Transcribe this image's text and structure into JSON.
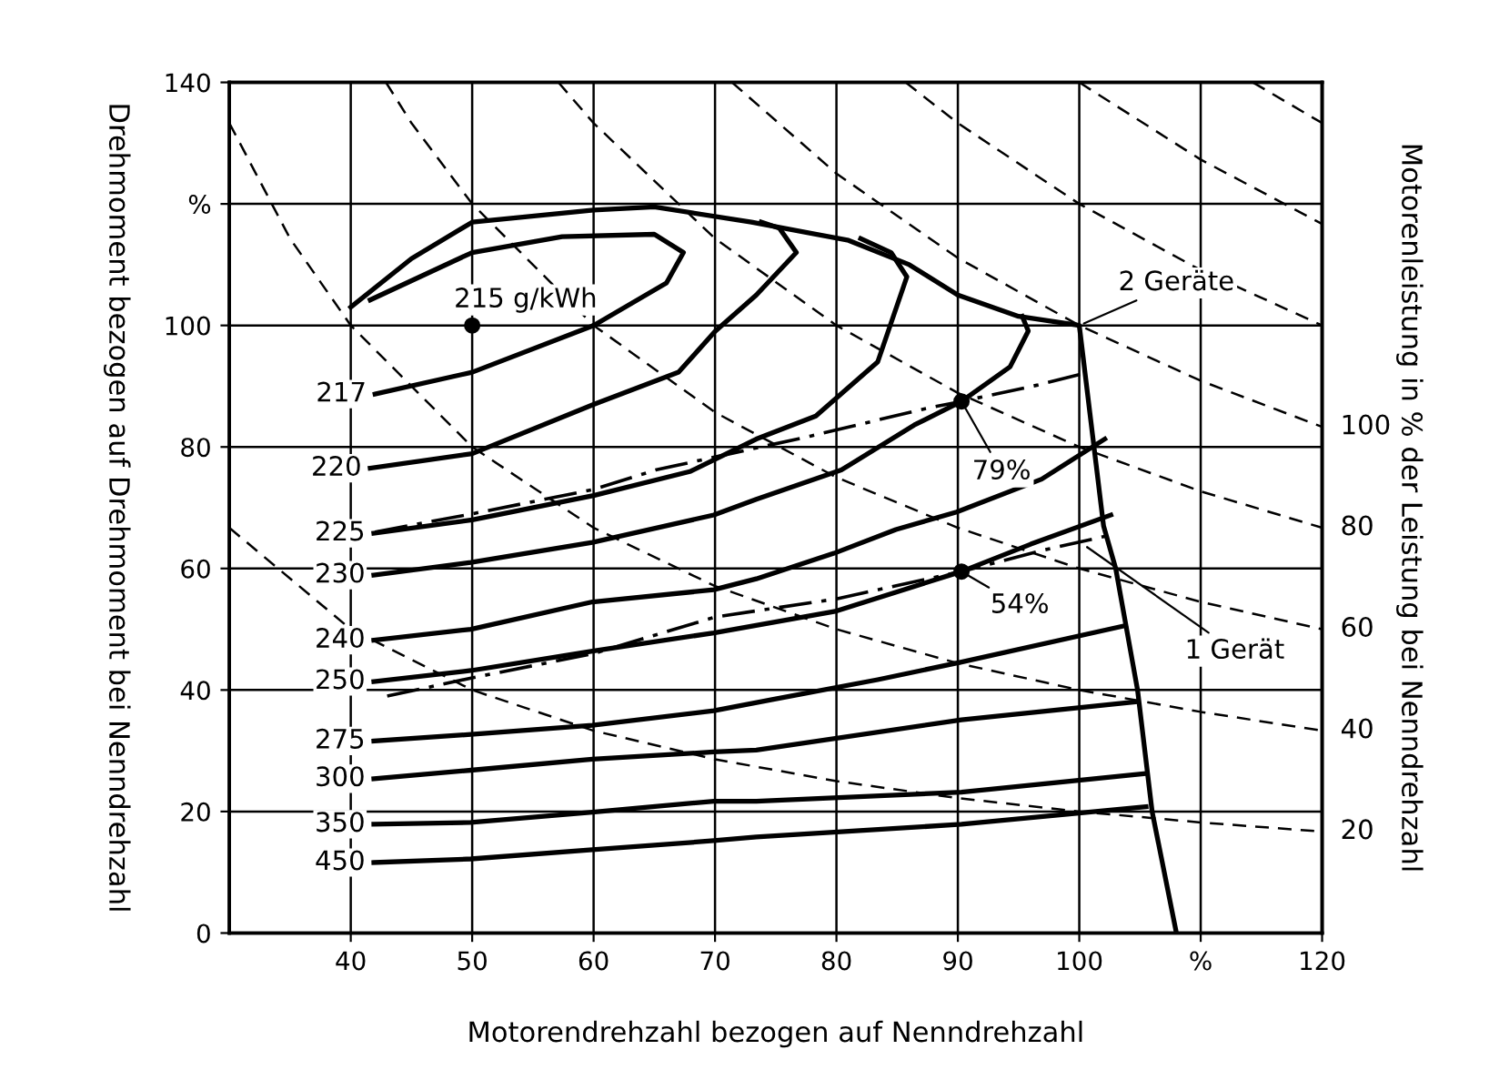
{
  "chart_data": {
    "type": "line",
    "xlabel": "Motorendrehzahl bezogen auf Nenndrehzahl",
    "ylabel": "Drehmoment bezogen auf Drehmoment bei Nenndrehzahl",
    "y2label": "Motorenleistung in % der Leistung bei Nenndrehzahl",
    "xlim": [
      30,
      120
    ],
    "ylim": [
      0,
      140
    ],
    "xticks": [
      40,
      50,
      60,
      70,
      80,
      90,
      100,
      {
        "value": 110,
        "label": "%"
      },
      120
    ],
    "yticks": [
      0,
      20,
      40,
      60,
      80,
      100,
      {
        "value": 120,
        "label": "%"
      },
      140
    ],
    "grid": true,
    "line_style": "solid",
    "series": [
      {
        "color": "#000000",
        "x": [
          40,
          45,
          50,
          60,
          65,
          73,
          81,
          86,
          90,
          95,
          100,
          102,
          103,
          104.8,
          106,
          108
        ],
        "values": [
          103,
          111,
          117,
          119,
          119.5,
          117,
          114,
          110,
          105,
          101.5,
          100,
          67,
          60,
          40,
          20,
          0
        ]
      },
      {
        "name": "217",
        "color": "#000000",
        "x": [
          42,
          50,
          60,
          66,
          67.4,
          65,
          57.4,
          50,
          41.6
        ],
        "values": [
          88.7,
          92.3,
          100,
          107,
          112,
          115,
          114.6,
          112,
          104.2
        ]
      },
      {
        "name": "220",
        "color": "#000000",
        "x": [
          41.6,
          50,
          60,
          67,
          70,
          73.4,
          76.7,
          75.3,
          73.8
        ],
        "values": [
          76.5,
          78.9,
          87,
          92.3,
          99,
          105,
          112,
          116,
          117
        ]
      },
      {
        "name": "225",
        "color": "#000000",
        "x": [
          41.9,
          50,
          60,
          68,
          73.4,
          78.3,
          83.4,
          85.8,
          84.5,
          82
        ],
        "values": [
          65.8,
          68,
          72,
          76,
          81.3,
          85.1,
          94,
          108,
          112,
          114.3
        ]
      },
      {
        "name": "230",
        "color": "#000000",
        "x": [
          41.9,
          49.9,
          59.9,
          69.9,
          73.4,
          80.4,
          86.4,
          90.3,
          94.3,
          95.8,
          95.3
        ],
        "values": [
          58.9,
          61,
          64.3,
          68.8,
          71.4,
          76.2,
          83.6,
          87.5,
          93.2,
          99.1,
          101.5
        ]
      },
      {
        "name": "240",
        "color": "#000000",
        "x": [
          41.9,
          49.9,
          59.9,
          69.9,
          73.4,
          79.8,
          84.9,
          89.9,
          96.9,
          102.1
        ],
        "values": [
          48.2,
          50,
          54.5,
          56.5,
          58.3,
          62.5,
          66.4,
          69.3,
          74.7,
          81.3
        ]
      },
      {
        "name": "250",
        "color": "#000000",
        "x": [
          41.9,
          49.9,
          59.9,
          69.9,
          80,
          90.3,
          96,
          102.6
        ],
        "values": [
          41.4,
          43.2,
          46.4,
          49.4,
          53,
          59.5,
          64,
          68.8
        ]
      },
      {
        "name": "275",
        "color": "#000000",
        "x": [
          41.9,
          49.9,
          59.9,
          69.9,
          74.9,
          83.4,
          90.3,
          103.8
        ],
        "values": [
          31.6,
          32.7,
          34.2,
          36.6,
          38.5,
          41.7,
          44.6,
          50.6
        ]
      },
      {
        "name": "300",
        "color": "#000000",
        "x": [
          41.9,
          49.9,
          59.9,
          69.9,
          73.4,
          90.3,
          104.8
        ],
        "values": [
          25.4,
          26.8,
          28.6,
          29.8,
          30.1,
          35.1,
          38.1
        ]
      },
      {
        "name": "350",
        "color": "#000000",
        "x": [
          41.9,
          49.9,
          59.9,
          69.9,
          73.4,
          90.3,
          105.3
        ],
        "values": [
          17.9,
          18.2,
          19.9,
          21.7,
          21.7,
          23.2,
          26.2
        ]
      },
      {
        "name": "450",
        "color": "#000000",
        "x": [
          41.9,
          49.9,
          59.9,
          69.9,
          73.4,
          90.3,
          105.5
        ],
        "values": [
          11.6,
          12.2,
          13.7,
          15.2,
          15.8,
          17.9,
          20.8
        ]
      },
      {
        "color": "#000000",
        "line_style": "dashdot",
        "x": [
          42,
          50,
          60,
          65.1,
          77.9,
          87.3,
          90.3,
          96.6,
          100.8
        ],
        "values": [
          66,
          69,
          73,
          76.2,
          81.8,
          86.3,
          87.5,
          90.2,
          92.3
        ]
      },
      {
        "color": "#000000",
        "line_style": "dashdot",
        "x": [
          43,
          50,
          60,
          70,
          80,
          90.3,
          97,
          102.6
        ],
        "values": [
          39,
          42,
          46,
          52,
          55,
          59.5,
          63,
          65.5
        ]
      },
      {
        "name": "20",
        "color": "#000000",
        "line_style": "dashed",
        "x": [
          30,
          40,
          50,
          60,
          70,
          80,
          90,
          100,
          110,
          120
        ],
        "values": [
          66.7,
          50,
          40,
          33.3,
          28.6,
          25,
          22.2,
          20,
          18.2,
          16.7
        ]
      },
      {
        "name": "40",
        "color": "#000000",
        "line_style": "dashed",
        "x": [
          30,
          35,
          40,
          50,
          60,
          70,
          80,
          90,
          100,
          110,
          120
        ],
        "values": [
          133.3,
          114.3,
          100,
          80,
          66.7,
          57.1,
          50,
          44.4,
          40,
          36.4,
          33.3
        ]
      },
      {
        "name": "60",
        "color": "#000000",
        "line_style": "dashed",
        "x": [
          42.9,
          45,
          50,
          60,
          70,
          80,
          90,
          100,
          110,
          120
        ],
        "values": [
          140,
          133.3,
          120,
          100,
          85.7,
          75,
          66.7,
          60,
          54.5,
          50
        ]
      },
      {
        "name": "80",
        "color": "#000000",
        "line_style": "dashed",
        "x": [
          57.1,
          60,
          70,
          80,
          90,
          100,
          110,
          120
        ],
        "values": [
          140,
          133.3,
          114.3,
          100,
          88.9,
          80,
          72.7,
          66.7
        ]
      },
      {
        "name": "100",
        "color": "#000000",
        "line_style": "dashed",
        "x": [
          71.4,
          80,
          90,
          100,
          110,
          120
        ],
        "values": [
          140,
          125,
          111.1,
          100,
          90.9,
          83.3
        ]
      },
      {
        "color": "#000000",
        "line_style": "dashed",
        "x": [
          85.7,
          90,
          100,
          110,
          120
        ],
        "values": [
          140,
          133.3,
          120,
          109.1,
          100
        ]
      },
      {
        "color": "#000000",
        "line_style": "dashed",
        "x": [
          100,
          110,
          120
        ],
        "values": [
          140,
          127.3,
          116.7
        ]
      },
      {
        "color": "#000000",
        "line_style": "dashed",
        "x": [
          114.3,
          120
        ],
        "values": [
          140,
          133.3
        ]
      },
      {
        "type": "scatter",
        "marker": "circle",
        "color": "#000000",
        "x": [
          50,
          90.3,
          90.3
        ],
        "values": [
          100,
          87.5,
          59.5
        ]
      }
    ],
    "annotations": [
      {
        "text": "215 g/kWh",
        "x": 50,
        "y": 100
      },
      {
        "text": "2 Geräte",
        "x": 100,
        "y": 100
      },
      {
        "text": "79%",
        "x": 90.3,
        "y": 87.5
      },
      {
        "text": "54%",
        "x": 90.3,
        "y": 59.5
      },
      {
        "text": "1 Gerät",
        "x": 100.3,
        "y": 64
      }
    ]
  }
}
